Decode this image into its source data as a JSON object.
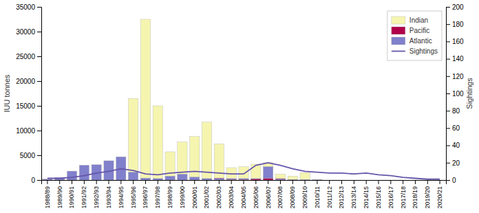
{
  "chart_data": {
    "type": "bar",
    "categories": [
      "1988/89",
      "1989/90",
      "1990/91",
      "1991/92",
      "1992/93",
      "1993/94",
      "1994/95",
      "1995/96",
      "1996/97",
      "1997/98",
      "1998/99",
      "1999/00",
      "2000/01",
      "2001/02",
      "2002/03",
      "2003/04",
      "2004/05",
      "2005/06",
      "2006/07",
      "2007/08",
      "2008/09",
      "2009/10",
      "2010/11",
      "2011/12",
      "2012/13",
      "2013/14",
      "2014/15",
      "2015/16",
      "2016/17",
      "2017/18",
      "2018/19",
      "2019/20",
      "2020/21"
    ],
    "series": [
      {
        "name": "Indian",
        "color": "#f5f5b0",
        "values": [
          0,
          0,
          0,
          0,
          0,
          0,
          0,
          16500,
          32500,
          15000,
          5700,
          7700,
          8800,
          11700,
          7300,
          2500,
          2700,
          3200,
          3500,
          1200,
          800,
          1500,
          0,
          0,
          0,
          0,
          0,
          0,
          0,
          0,
          0,
          0,
          0
        ]
      },
      {
        "name": "Pacific",
        "color": "#b0004a",
        "values": [
          0,
          0,
          0,
          0,
          0,
          0,
          0,
          0,
          0,
          0,
          0,
          0,
          0,
          0,
          400,
          100,
          100,
          200,
          300,
          300,
          100,
          0,
          0,
          0,
          0,
          0,
          0,
          0,
          0,
          0,
          0,
          0,
          0
        ]
      },
      {
        "name": "Atlantic",
        "color": "#8080cc",
        "values": [
          200,
          500,
          1800,
          3000,
          3100,
          3900,
          4700,
          1600,
          400,
          300,
          800,
          1200,
          600,
          300,
          300,
          300,
          300,
          300,
          2700,
          200,
          100,
          100,
          100,
          0,
          0,
          0,
          0,
          0,
          0,
          0,
          0,
          0,
          0
        ]
      },
      {
        "name": "Sightings",
        "type": "line",
        "axis": "y2",
        "color": "#6655aa",
        "values": [
          2,
          2,
          3,
          5,
          8,
          10,
          13,
          11,
          7,
          6,
          8,
          9,
          10,
          9,
          8,
          7,
          7,
          17,
          20,
          17,
          13,
          10,
          9,
          8,
          8,
          7,
          8,
          6,
          5,
          3,
          2,
          1,
          1
        ]
      }
    ],
    "ylabel": "IUU tonnes",
    "y2label": "Sightings",
    "ylim": [
      0,
      35000
    ],
    "yticks": [
      0,
      5000,
      10000,
      15000,
      20000,
      25000,
      30000,
      35000
    ],
    "y2lim": [
      0,
      200
    ],
    "y2ticks": [
      0,
      20,
      40,
      60,
      80,
      100,
      120,
      140,
      160,
      180,
      200
    ],
    "stacked": false,
    "grid": false,
    "legend": "upper right"
  }
}
